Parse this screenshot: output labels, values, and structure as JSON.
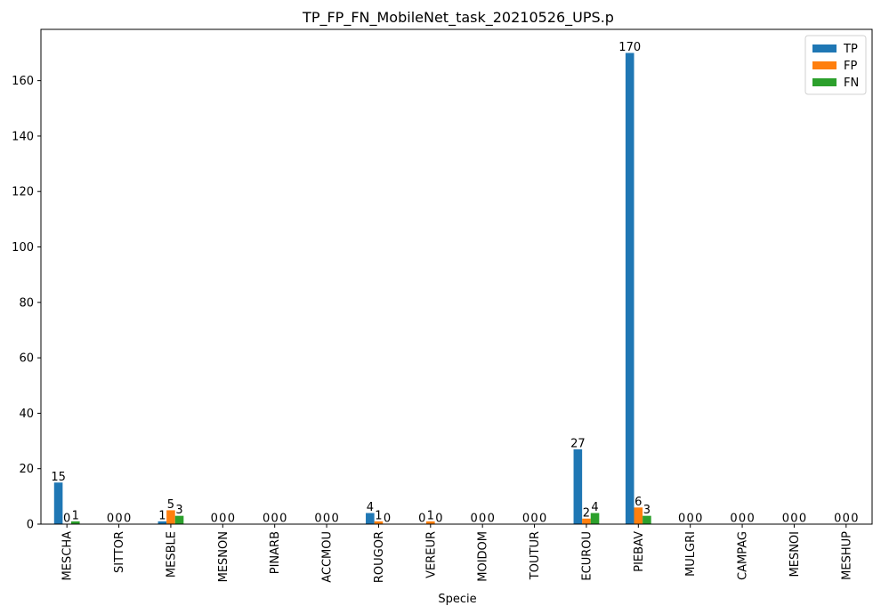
{
  "chart_data": {
    "type": "bar",
    "title": "TP_FP_FN_MobileNet_task_20210526_UPS.p",
    "xlabel": "Specie",
    "ylabel": "",
    "ylim": [
      0,
      178.5
    ],
    "yticks": [
      0,
      20,
      40,
      60,
      80,
      100,
      120,
      140,
      160
    ],
    "grid": false,
    "legend_position": "top-right",
    "categories": [
      "MESCHA",
      "SITTOR",
      "MESBLE",
      "MESNON",
      "PINARB",
      "ACCMOU",
      "ROUGOR",
      "VEREUR",
      "MOIDOM",
      "TOUTUR",
      "ECUROU",
      "PIEBAV",
      "MULGRI",
      "CAMPAG",
      "MESNOI",
      "MESHUP"
    ],
    "series": [
      {
        "name": "TP",
        "color": "#1f77b4",
        "values": [
          15,
          0,
          1,
          0,
          0,
          0,
          4,
          0,
          0,
          0,
          27,
          170,
          0,
          0,
          0,
          0
        ]
      },
      {
        "name": "FP",
        "color": "#ff7f0e",
        "values": [
          0,
          0,
          5,
          0,
          0,
          0,
          1,
          1,
          0,
          0,
          2,
          6,
          0,
          0,
          0,
          0
        ]
      },
      {
        "name": "FN",
        "color": "#2ca02c",
        "values": [
          1,
          0,
          3,
          0,
          0,
          0,
          0,
          0,
          0,
          0,
          4,
          3,
          0,
          0,
          0,
          0
        ]
      }
    ]
  }
}
